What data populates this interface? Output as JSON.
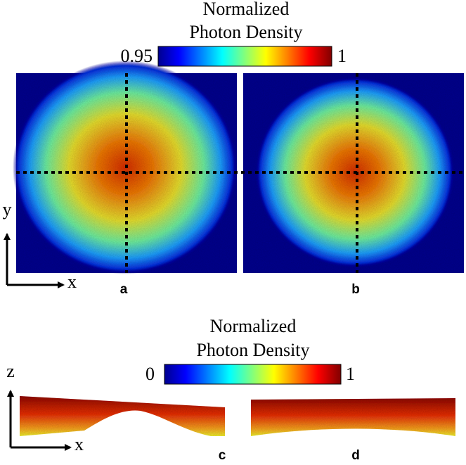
{
  "top_colorbar": {
    "title_lines": [
      "Normalized",
      "Photon Density"
    ],
    "min": 0.95,
    "max": 1
  },
  "top_panels": [
    "a",
    "b"
  ],
  "top_axes": {
    "vertical": "y",
    "horizontal": "x"
  },
  "bottom_colorbar": {
    "title_lines": [
      "Normalized",
      "Photon Density"
    ],
    "min": 0,
    "max": 1
  },
  "bottom_panels": [
    "c",
    "d"
  ],
  "bottom_axes": {
    "vertical": "z",
    "horizontal": "x"
  }
}
